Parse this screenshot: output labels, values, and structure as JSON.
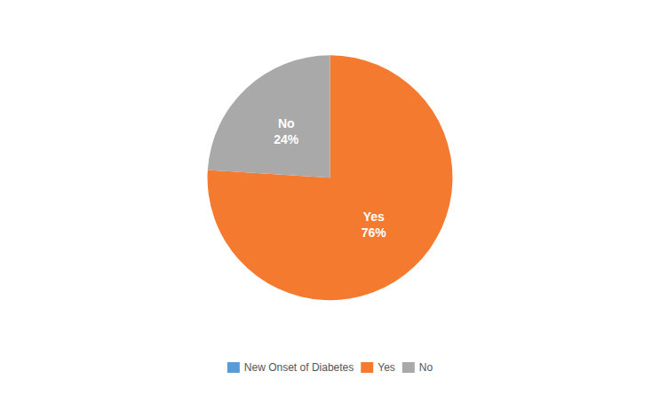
{
  "chart_data": {
    "type": "pie",
    "categories": [
      "Yes",
      "No"
    ],
    "series": [
      {
        "name": "New Onset of Diabetes",
        "color": "#5B9BD5",
        "values": [
          76,
          24
        ],
        "colors": [
          "#F47A30",
          "#A9A9A9"
        ],
        "value_labels": [
          "Yes\n76%",
          "No\n24%"
        ]
      }
    ],
    "data_labels": true,
    "legend": "bottom"
  }
}
